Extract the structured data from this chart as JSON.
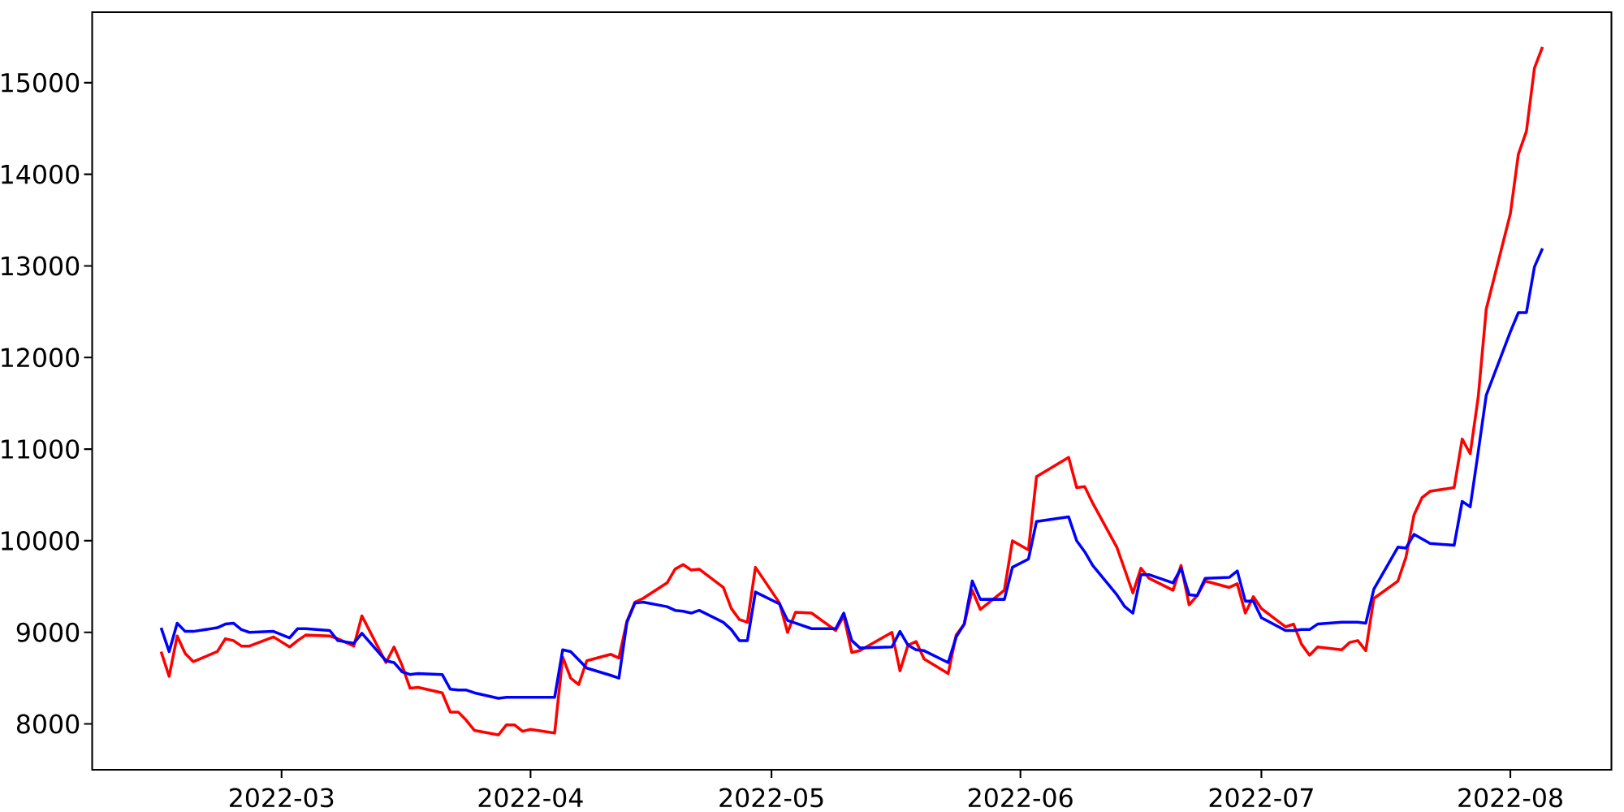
{
  "chart_data": {
    "type": "line",
    "x": [
      "2022-02-14",
      "2022-02-15",
      "2022-02-16",
      "2022-02-17",
      "2022-02-18",
      "2022-02-21",
      "2022-02-22",
      "2022-02-23",
      "2022-02-24",
      "2022-02-25",
      "2022-02-28",
      "2022-03-02",
      "2022-03-03",
      "2022-03-04",
      "2022-03-07",
      "2022-03-08",
      "2022-03-10",
      "2022-03-11",
      "2022-03-14",
      "2022-03-15",
      "2022-03-16",
      "2022-03-17",
      "2022-03-18",
      "2022-03-21",
      "2022-03-22",
      "2022-03-23",
      "2022-03-24",
      "2022-03-25",
      "2022-03-28",
      "2022-03-29",
      "2022-03-30",
      "2022-03-31",
      "2022-04-01",
      "2022-04-04",
      "2022-04-05",
      "2022-04-06",
      "2022-04-07",
      "2022-04-08",
      "2022-04-11",
      "2022-04-12",
      "2022-04-13",
      "2022-04-14",
      "2022-04-15",
      "2022-04-18",
      "2022-04-19",
      "2022-04-20",
      "2022-04-21",
      "2022-04-22",
      "2022-04-25",
      "2022-04-26",
      "2022-04-27",
      "2022-04-28",
      "2022-04-29",
      "2022-05-02",
      "2022-05-03",
      "2022-05-04",
      "2022-05-06",
      "2022-05-09",
      "2022-05-10",
      "2022-05-11",
      "2022-05-12",
      "2022-05-16",
      "2022-05-17",
      "2022-05-18",
      "2022-05-19",
      "2022-05-20",
      "2022-05-23",
      "2022-05-24",
      "2022-05-25",
      "2022-05-26",
      "2022-05-27",
      "2022-05-30",
      "2022-05-31",
      "2022-06-02",
      "2022-06-03",
      "2022-06-07",
      "2022-06-08",
      "2022-06-09",
      "2022-06-10",
      "2022-06-13",
      "2022-06-14",
      "2022-06-15",
      "2022-06-16",
      "2022-06-17",
      "2022-06-20",
      "2022-06-21",
      "2022-06-22",
      "2022-06-23",
      "2022-06-24",
      "2022-06-27",
      "2022-06-28",
      "2022-06-29",
      "2022-06-30",
      "2022-07-01",
      "2022-07-04",
      "2022-07-05",
      "2022-07-06",
      "2022-07-07",
      "2022-07-08",
      "2022-07-11",
      "2022-07-12",
      "2022-07-13",
      "2022-07-14",
      "2022-07-15",
      "2022-07-18",
      "2022-07-19",
      "2022-07-20",
      "2022-07-21",
      "2022-07-22",
      "2022-07-25",
      "2022-07-26",
      "2022-07-27",
      "2022-07-28",
      "2022-07-29",
      "2022-08-01",
      "2022-08-02",
      "2022-08-03",
      "2022-08-04",
      "2022-08-05"
    ],
    "series": [
      {
        "color": "#ff0000",
        "values": [
          8790,
          8520,
          8960,
          8770,
          8680,
          8790,
          8930,
          8910,
          8850,
          8850,
          8950,
          8840,
          8910,
          8970,
          8960,
          8930,
          8850,
          9180,
          8670,
          8840,
          8640,
          8390,
          8400,
          8340,
          8130,
          8130,
          8040,
          7930,
          7880,
          7990,
          7990,
          7920,
          7940,
          7900,
          8730,
          8500,
          8430,
          8690,
          8760,
          8720,
          9120,
          9330,
          9370,
          9540,
          9690,
          9740,
          9680,
          9690,
          9490,
          9260,
          9140,
          9110,
          9710,
          9320,
          9000,
          9220,
          9210,
          9020,
          9180,
          8780,
          8800,
          9000,
          8580,
          8860,
          8900,
          8710,
          8550,
          8970,
          9090,
          9460,
          9250,
          9460,
          10000,
          9900,
          10700,
          10910,
          10580,
          10590,
          10410,
          9930,
          9680,
          9430,
          9700,
          9590,
          9460,
          9730,
          9300,
          9400,
          9560,
          9490,
          9530,
          9210,
          9390,
          9260,
          9060,
          9090,
          8870,
          8750,
          8840,
          8810,
          8890,
          8910,
          8800,
          9370,
          9560,
          9820,
          10280,
          10470,
          10540,
          10580,
          11110,
          10950,
          11570,
          12530,
          13570,
          14220,
          14470,
          15160,
          15390
        ]
      },
      {
        "color": "#0000ff",
        "values": [
          9050,
          8790,
          9100,
          9010,
          9010,
          9050,
          9090,
          9100,
          9030,
          9000,
          9010,
          8940,
          9040,
          9040,
          9020,
          8910,
          8880,
          8990,
          8690,
          8670,
          8570,
          8540,
          8550,
          8540,
          8380,
          8370,
          8370,
          8340,
          8280,
          8290,
          8290,
          8290,
          8290,
          8290,
          8810,
          8790,
          8700,
          8610,
          8530,
          8500,
          9110,
          9320,
          9330,
          9280,
          9240,
          9230,
          9210,
          9240,
          9110,
          9030,
          8910,
          8910,
          9440,
          9310,
          9130,
          9100,
          9040,
          9040,
          9210,
          8910,
          8830,
          8840,
          9010,
          8860,
          8810,
          8800,
          8670,
          8950,
          9090,
          9560,
          9360,
          9360,
          9710,
          9800,
          10210,
          10260,
          10000,
          9880,
          9730,
          9410,
          9280,
          9210,
          9630,
          9630,
          9540,
          9700,
          9410,
          9400,
          9590,
          9600,
          9670,
          9340,
          9340,
          9160,
          9020,
          9020,
          9030,
          9030,
          9090,
          9110,
          9110,
          9110,
          9100,
          9470,
          9930,
          9920,
          10070,
          10020,
          9970,
          9950,
          10430,
          10370,
          10970,
          11590,
          12280,
          12490,
          12490,
          12990,
          13190
        ]
      }
    ],
    "xlim": [
      "2022-02-05T10:00",
      "2022-08-13T14:00"
    ],
    "xticks": [
      {
        "value": "2022-03-01",
        "label": "2022-03"
      },
      {
        "value": "2022-04-01",
        "label": "2022-04"
      },
      {
        "value": "2022-05-01",
        "label": "2022-05"
      },
      {
        "value": "2022-06-01",
        "label": "2022-06"
      },
      {
        "value": "2022-07-01",
        "label": "2022-07"
      },
      {
        "value": "2022-08-01",
        "label": "2022-08"
      }
    ],
    "ylim": [
      7500,
      15770
    ],
    "yticks": [
      8000,
      9000,
      10000,
      11000,
      12000,
      13000,
      14000,
      15000
    ],
    "marker": "none",
    "line_style": "solid"
  }
}
